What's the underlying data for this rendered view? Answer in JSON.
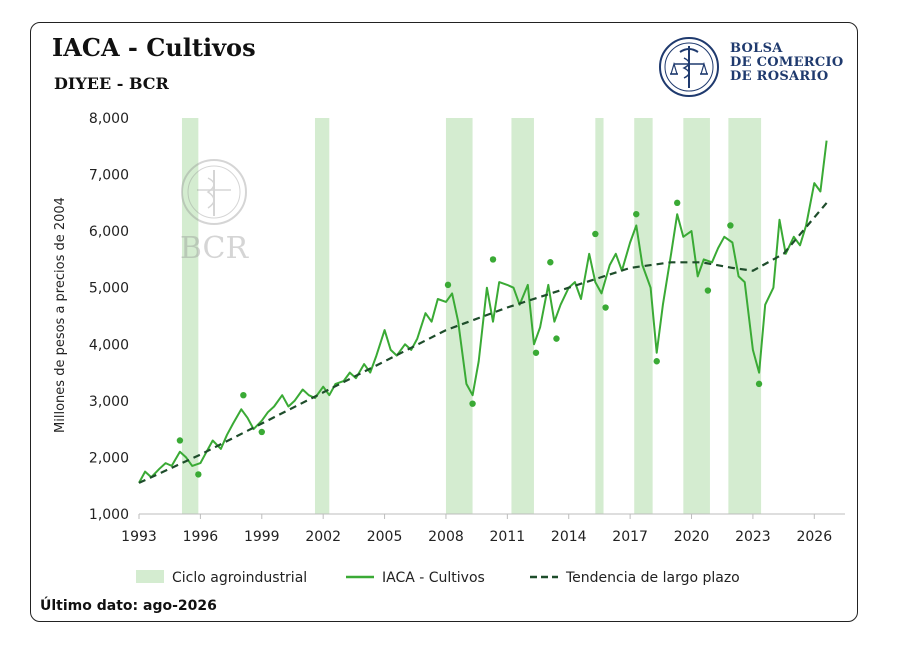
{
  "header": {
    "title": "IACA - Cultivos",
    "subtitle": "DIYEE - BCR"
  },
  "logo": {
    "lines": [
      "BOLSA",
      "DE COMERCIO",
      "DE ROSARIO"
    ],
    "icon": "caduceus-scales-seal-icon",
    "watermark": "BCR"
  },
  "footer": {
    "note": "Último dato: ago-2026"
  },
  "colors": {
    "band": "#d4ecd0",
    "line": "#3aaa35",
    "trend": "#1e4d2b",
    "dots": "#3aaa35",
    "logo": "#1f3a6e"
  },
  "chart_data": {
    "type": "line",
    "ylabel": "Millones de pesos a precios de 2004",
    "ylim": [
      1000,
      8000
    ],
    "yticks": [
      1000,
      2000,
      3000,
      4000,
      5000,
      6000,
      7000,
      8000
    ],
    "ytick_labels": [
      "1,000",
      "2,000",
      "3,000",
      "4,000",
      "5,000",
      "6,000",
      "7,000",
      "8,000"
    ],
    "xlim": [
      1993,
      2027.5
    ],
    "xticks": [
      1993,
      1996,
      1999,
      2002,
      2005,
      2008,
      2011,
      2014,
      2017,
      2020,
      2023,
      2026
    ],
    "xtick_labels": [
      "1993",
      "1996",
      "1999",
      "2002",
      "2005",
      "2008",
      "2011",
      "2014",
      "2017",
      "2020",
      "2023",
      "2026"
    ],
    "legend_position": "bottom",
    "legend": [
      {
        "label": "Ciclo agroindustrial",
        "kind": "band"
      },
      {
        "label": "IACA - Cultivos",
        "kind": "line"
      },
      {
        "label": "Tendencia de largo plazo",
        "kind": "dashed"
      }
    ],
    "cycles": [
      [
        1995.1,
        1995.9
      ],
      [
        2001.6,
        2002.3
      ],
      [
        2008.0,
        2009.3
      ],
      [
        2011.2,
        2012.3
      ],
      [
        2015.3,
        2015.7
      ],
      [
        2017.2,
        2018.1
      ],
      [
        2019.6,
        2020.9
      ],
      [
        2021.8,
        2023.4
      ]
    ],
    "series": [
      {
        "name": "IACA - Cultivos",
        "x": [
          1993.0,
          1993.3,
          1993.6,
          1994.0,
          1994.3,
          1994.6,
          1995.0,
          1995.3,
          1995.6,
          1996.0,
          1996.3,
          1996.6,
          1997.0,
          1997.3,
          1997.6,
          1998.0,
          1998.3,
          1998.6,
          1999.0,
          1999.3,
          1999.6,
          2000.0,
          2000.3,
          2000.6,
          2001.0,
          2001.3,
          2001.6,
          2002.0,
          2002.3,
          2002.6,
          2003.0,
          2003.3,
          2003.6,
          2004.0,
          2004.3,
          2004.6,
          2005.0,
          2005.3,
          2005.6,
          2006.0,
          2006.3,
          2006.6,
          2007.0,
          2007.3,
          2007.6,
          2008.0,
          2008.3,
          2008.6,
          2009.0,
          2009.3,
          2009.6,
          2010.0,
          2010.3,
          2010.6,
          2011.0,
          2011.3,
          2011.6,
          2012.0,
          2012.3,
          2012.6,
          2013.0,
          2013.3,
          2013.6,
          2014.0,
          2014.3,
          2014.6,
          2015.0,
          2015.3,
          2015.6,
          2016.0,
          2016.3,
          2016.6,
          2017.0,
          2017.3,
          2017.6,
          2018.0,
          2018.3,
          2018.6,
          2019.0,
          2019.3,
          2019.6,
          2020.0,
          2020.3,
          2020.6,
          2021.0,
          2021.3,
          2021.6,
          2022.0,
          2022.3,
          2022.6,
          2023.0,
          2023.3,
          2023.6,
          2024.0,
          2024.3,
          2024.6,
          2025.0,
          2025.3,
          2025.6,
          2026.0,
          2026.3,
          2026.6
        ],
        "y": [
          1550,
          1750,
          1650,
          1800,
          1900,
          1850,
          2100,
          2000,
          1850,
          1900,
          2100,
          2300,
          2150,
          2400,
          2600,
          2850,
          2700,
          2500,
          2650,
          2800,
          2900,
          3100,
          2900,
          3000,
          3200,
          3100,
          3050,
          3250,
          3100,
          3300,
          3350,
          3500,
          3400,
          3650,
          3500,
          3800,
          4250,
          3900,
          3800,
          4000,
          3900,
          4100,
          4550,
          4400,
          4800,
          4750,
          4900,
          4400,
          3300,
          3100,
          3700,
          5000,
          4400,
          5100,
          5050,
          5000,
          4700,
          5050,
          4000,
          4300,
          5050,
          4400,
          4700,
          5000,
          5100,
          4800,
          5600,
          5100,
          4900,
          5400,
          5600,
          5300,
          5800,
          6100,
          5400,
          5000,
          3850,
          4700,
          5600,
          6300,
          5900,
          6000,
          5200,
          5500,
          5450,
          5700,
          5900,
          5800,
          5200,
          5100,
          3900,
          3500,
          4700,
          5000,
          6200,
          5600,
          5900,
          5750,
          6100,
          6850,
          6700,
          7600
        ]
      },
      {
        "name": "Tendencia de largo plazo",
        "x": [
          1993,
          1996,
          1999,
          2002,
          2005,
          2008,
          2011,
          2014,
          2017,
          2019,
          2020.5,
          2022,
          2023,
          2024.5,
          2026.6
        ],
        "y": [
          1550,
          2050,
          2600,
          3150,
          3700,
          4250,
          4650,
          5000,
          5350,
          5450,
          5450,
          5350,
          5300,
          5600,
          6500
        ]
      },
      {
        "name": "Ciclo",
        "x": [
          1995.0,
          1995.9,
          1998.1,
          1999.0,
          2008.1,
          2009.3,
          2010.3,
          2012.4,
          2013.1,
          2013.4,
          2015.3,
          2015.8,
          2017.3,
          2018.3,
          2019.3,
          2020.8,
          2021.9,
          2023.3
        ],
        "y": [
          2300,
          1700,
          3100,
          2450,
          5050,
          2950,
          5500,
          3850,
          5450,
          4100,
          5950,
          4650,
          6300,
          3700,
          6500,
          4950,
          6100,
          3300
        ]
      }
    ]
  }
}
